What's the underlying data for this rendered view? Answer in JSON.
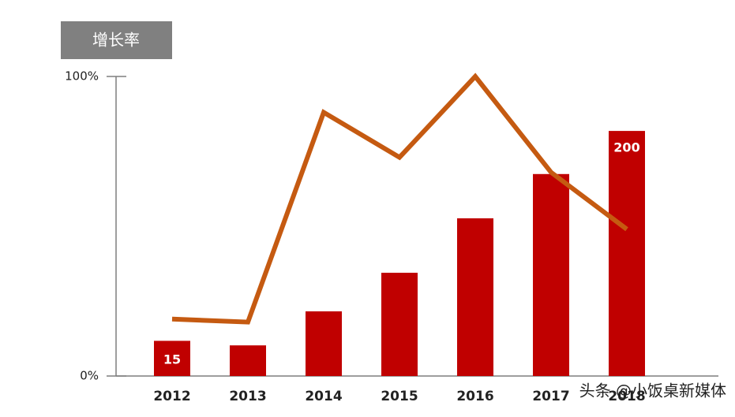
{
  "chart_data": {
    "type": "combo",
    "title": "增长率",
    "categories": [
      "2012",
      "2013",
      "2014",
      "2015",
      "2016",
      "2017",
      "2018"
    ],
    "series": [
      {
        "type": "bar",
        "axis": "y2",
        "color": "#c00000",
        "values": [
          15,
          11,
          41,
          75,
          123,
          162,
          200
        ],
        "value_labels": [
          "15",
          null,
          null,
          null,
          null,
          null,
          "200"
        ]
      },
      {
        "type": "line",
        "color": "#c55a11",
        "values": [
          19,
          18,
          88,
          73,
          100,
          68,
          49
        ]
      }
    ],
    "ylim": [
      0,
      100
    ],
    "yticks": [
      {
        "value": 0,
        "label": "0%"
      },
      {
        "value": 100,
        "label": "100%"
      }
    ],
    "y2lim": [
      -16,
      248
    ],
    "watermark": "头条 @小饭桌新媒体"
  }
}
